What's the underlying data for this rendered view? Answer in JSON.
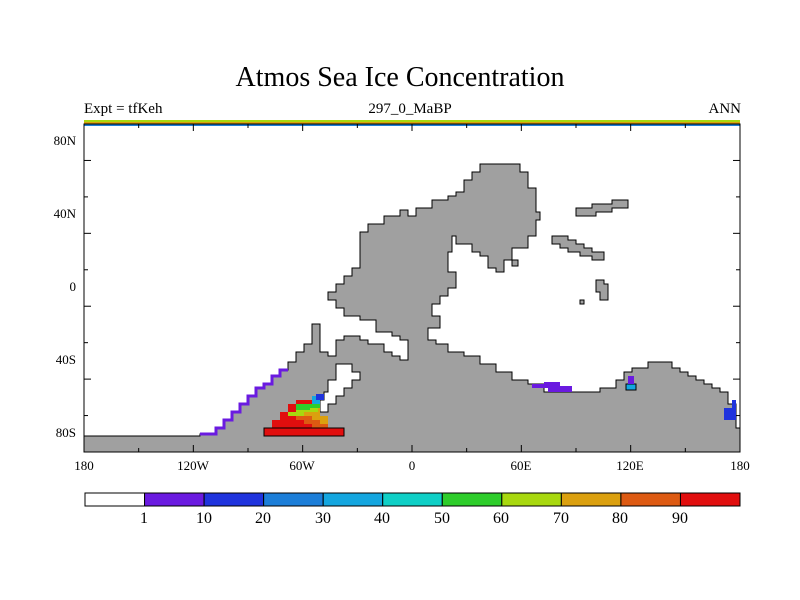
{
  "title": "Atmos Sea Ice Concentration",
  "subtitle_left": "Expt = tfKeh",
  "subtitle_center": "297_0_MaBP",
  "subtitle_right": "ANN",
  "map": {
    "projection": "cylindrical-equidistant",
    "lon_range": [
      180,
      -180
    ],
    "lat_range": [
      -90,
      90
    ],
    "x_ticks": [
      "180",
      "120W",
      "60W",
      "0",
      "60E",
      "120E",
      "180"
    ],
    "y_ticks": [
      "80N",
      "40N",
      "0",
      "40S",
      "80S"
    ],
    "land_color": "#a0a0a0",
    "ocean_color": "#ffffff"
  },
  "colorbar": {
    "labels": [
      "1",
      "10",
      "20",
      "30",
      "40",
      "50",
      "60",
      "70",
      "80",
      "90"
    ],
    "colors": [
      "#ffffff",
      "#6a1ae0",
      "#1f33dd",
      "#1c7ed8",
      "#14a6df",
      "#0fcfc6",
      "#2ecd2b",
      "#a8d80f",
      "#dba00f",
      "#dd5a12",
      "#e10e0e"
    ]
  }
}
